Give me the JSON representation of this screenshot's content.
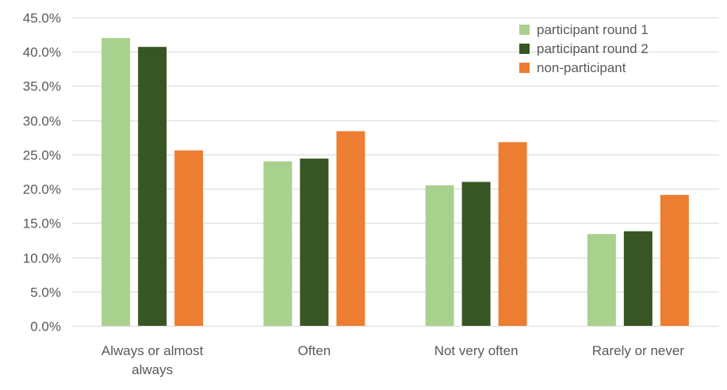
{
  "chart_data": {
    "type": "bar",
    "title": "",
    "xlabel": "",
    "ylabel": "",
    "categories": [
      [
        "Always or almost",
        "always"
      ],
      [
        "Often"
      ],
      [
        "Not very often"
      ],
      [
        "Rarely or never"
      ]
    ],
    "series": [
      {
        "name": "participant round 1",
        "color": "#a9d18e",
        "values": [
          42.0,
          24.0,
          20.5,
          13.4
        ]
      },
      {
        "name": "participant round 2",
        "color": "#375623",
        "values": [
          40.7,
          24.4,
          21.0,
          13.8
        ]
      },
      {
        "name": "non-participant",
        "color": "#ed7d31",
        "values": [
          25.6,
          28.4,
          26.8,
          19.1
        ]
      }
    ],
    "ylim": [
      0,
      45
    ],
    "yticks": [
      0,
      5,
      10,
      15,
      20,
      25,
      30,
      35,
      40,
      45
    ],
    "ytick_labels": [
      "0.0%",
      "5.0%",
      "10.0%",
      "15.0%",
      "20.0%",
      "25.0%",
      "30.0%",
      "35.0%",
      "40.0%",
      "45.0%"
    ],
    "grid": true,
    "legend_position": "top-right"
  }
}
